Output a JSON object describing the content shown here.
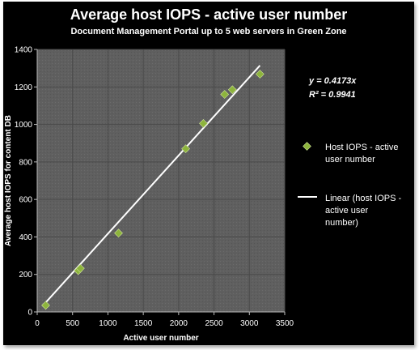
{
  "chart_data": {
    "type": "scatter",
    "title": "Average host IOPS - active user number",
    "subtitle": "Document Management Portal up to 5 web servers in Green Zone",
    "xlabel": "Active user number",
    "ylabel": "Average host  IOPS  for content DB",
    "xlim": [
      0,
      3500
    ],
    "ylim": [
      0,
      1400
    ],
    "xticks": [
      0,
      500,
      1000,
      1500,
      2000,
      2500,
      3000,
      3500
    ],
    "yticks": [
      0,
      200,
      400,
      600,
      800,
      1000,
      1200,
      1400
    ],
    "grid": true,
    "legend_position": "right",
    "series": [
      {
        "name": "Host IOPS - active user number",
        "kind": "points",
        "color": "#8db43c",
        "x": [
          120,
          580,
          610,
          1150,
          2100,
          2350,
          2650,
          2760,
          3150
        ],
        "y": [
          35,
          220,
          232,
          420,
          870,
          1005,
          1160,
          1185,
          1268
        ]
      },
      {
        "name": "Linear (host IOPS - active user number)",
        "kind": "trendline",
        "color": "#ffffff",
        "slope": 0.4173,
        "x_range": [
          100,
          3150
        ]
      }
    ],
    "annotations": {
      "equation": "y = 0.4173x",
      "r_squared": "R² = 0.9941"
    }
  }
}
